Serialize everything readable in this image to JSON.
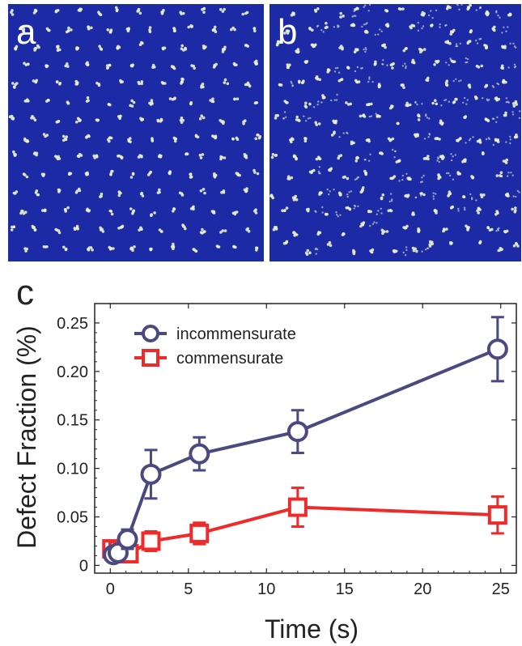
{
  "panels": {
    "a": {
      "label": "a",
      "lattice_spacing": 26,
      "defect_fraction": 0.0
    },
    "b": {
      "label": "b",
      "lattice_spacing": 26,
      "defect_fraction": 0.5
    },
    "c": {
      "label": "c"
    }
  },
  "colors": {
    "micrograph_bg": "#1c2aa6",
    "micrograph_dot": "#e8f0c8",
    "incommensurate": "#4a4a80",
    "commensurate": "#ee2a2a",
    "axis": "#222222"
  },
  "chart_data": {
    "type": "line",
    "title": "",
    "xlabel": "Time (s)",
    "ylabel": "Defect Fraction (%)",
    "xlim": [
      -1,
      26
    ],
    "ylim": [
      -0.008,
      0.27
    ],
    "xticks": [
      0,
      5,
      10,
      15,
      20,
      25
    ],
    "yticks": [
      0,
      0.05,
      0.1,
      0.15,
      0.2,
      0.25
    ],
    "ytick_labels": [
      "0",
      "0.05",
      "0.10",
      "0.15",
      "0.20",
      "0.25"
    ],
    "legend_position": "top-left",
    "series": [
      {
        "name": "incommensurate",
        "marker": "circle",
        "x": [
          0.2,
          0.5,
          1.1,
          2.6,
          5.7,
          12.0,
          24.8
        ],
        "y": [
          0.011,
          0.013,
          0.027,
          0.094,
          0.115,
          0.138,
          0.223
        ],
        "err": [
          0.004,
          0.004,
          0.01,
          0.025,
          0.017,
          0.022,
          0.033
        ]
      },
      {
        "name": "commensurate",
        "marker": "square",
        "x": [
          0.1,
          0.5,
          1.2,
          2.6,
          5.7,
          12.0,
          24.8
        ],
        "y": [
          0.017,
          0.016,
          0.012,
          0.025,
          0.033,
          0.06,
          0.052
        ],
        "err": [
          0.005,
          0.006,
          0.008,
          0.01,
          0.011,
          0.02,
          0.019
        ]
      }
    ]
  }
}
